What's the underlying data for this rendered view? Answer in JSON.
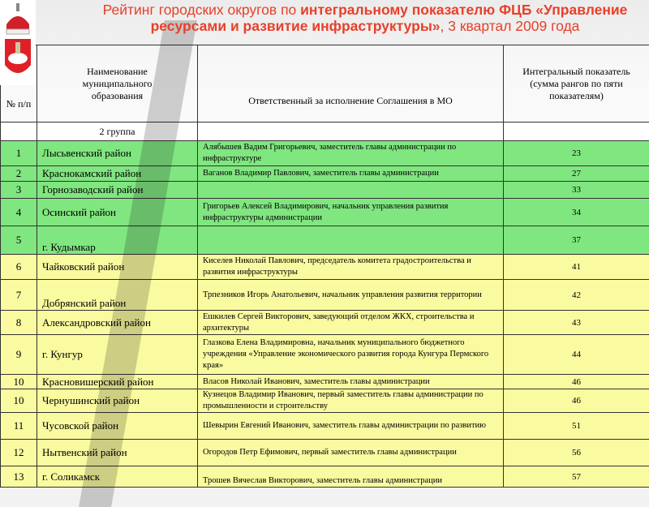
{
  "title": {
    "part1": "Рейтинг городских округов по ",
    "part2": "интегральному показателю ФЦБ «Управление ресурсами и развитие инфраструктуры»",
    "part3": ", 3 квартал 2009 года"
  },
  "colors": {
    "title": "#e8402a",
    "group_top": "#80e680",
    "group_rest": "#fafaa0"
  },
  "table": {
    "headers": [
      "№ п/п",
      "Наименование муниципального образования",
      "Ответственный за исполнение Соглашения в МО",
      "Интегральный показатель (сумма рангов по пяти показателям)"
    ],
    "group_label": "2 группа",
    "rows": [
      {
        "n": "1",
        "name": "Лысьвенский район",
        "resp": "Алябышев Вадим Григорьевич, заместитель главы администрации по инфраструктуре",
        "value": "23"
      },
      {
        "n": "2",
        "name": "Краснокамский район",
        "resp": "Ваганов Владимир Павлович, заместитель главы администрации",
        "value": "27"
      },
      {
        "n": "3",
        "name": "Горнозаводский район",
        "resp": "",
        "value": "33"
      },
      {
        "n": "4",
        "name": "Осинский район",
        "resp": "Григорьев Алексей Владимирович,  начальник управления развития инфраструктуры администрации",
        "value": "34"
      },
      {
        "n": "5",
        "name": "г. Кудымкар",
        "resp": "",
        "value": "37"
      },
      {
        "n": "6",
        "name": "Чайковский район",
        "resp": "Киселев Николай Павлович, председатель комитета градостроительства и развития инфраструктуры",
        "value": "41"
      },
      {
        "n": "7",
        "name": "Добрянский район",
        "resp": "Трпезников Игорь Анатольевич, начальник управления развития территории",
        "value": "42"
      },
      {
        "n": "8",
        "name": "Александровский район",
        "resp": "Ешкилев Сергей Викторович, заведующий отделом ЖКХ, строительства и архитектуры",
        "value": "43"
      },
      {
        "n": "9",
        "name": "г. Кунгур",
        "resp": "Глазкова Елена Владимировна, начальник муниципального бюджетного учреждения «Управление экономического развития города Кунгура Пермского края»",
        "value": "44"
      },
      {
        "n": "10",
        "name": "Красновишерский район",
        "resp": "Власов Николай Иванович, заместитель главы администрации",
        "value": "46"
      },
      {
        "n": "10",
        "name": "Чернушинский район",
        "resp": "Кузнецов Владимир Иванович, первый заместитель главы администрации по промышленности и строительству",
        "value": "46"
      },
      {
        "n": "11",
        "name": "Чусовской район",
        "resp": "Шевырин Евгений Иванович, заместитель главы администрации по развитию",
        "value": "51"
      },
      {
        "n": "12",
        "name": "Нытвенский район",
        "resp": "Огородов Петр Ефимович, первый заместитель главы администрации",
        "value": "56"
      },
      {
        "n": "13",
        "name": "г. Соликамск",
        "resp": "Трошев Вячеслав Викторович, заместитель главы администрации",
        "value": "57"
      }
    ]
  }
}
